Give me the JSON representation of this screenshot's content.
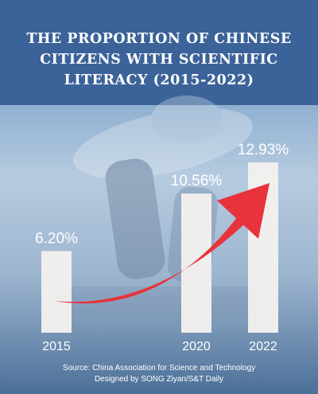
{
  "title": "THE PROPORTION OF CHINESE\nCITIZENS WITH SCIENTIFIC\nLITERACY (2015-2022)",
  "source_line": "Source: China Association for Science and Technology",
  "credit_line": "Designed by SONG Ziyan/S&T Daily",
  "colors": {
    "header": "#3b6399",
    "bar": "#f3f1ee",
    "arrow": "#e8323c",
    "label": "#ffffff"
  },
  "chart_data": {
    "type": "bar",
    "title": "THE PROPORTION OF CHINESE CITIZENS WITH SCIENTIFIC LITERACY (2015-2022)",
    "categories": [
      "2015",
      "2020",
      "2022"
    ],
    "values": [
      6.2,
      10.56,
      12.93
    ],
    "value_labels": [
      "6.20%",
      "10.56%",
      "12.93%"
    ],
    "xlabel": "",
    "ylabel": "",
    "ylim": [
      0,
      14
    ],
    "grid": false,
    "legend": "none",
    "trend_arrow": true
  }
}
